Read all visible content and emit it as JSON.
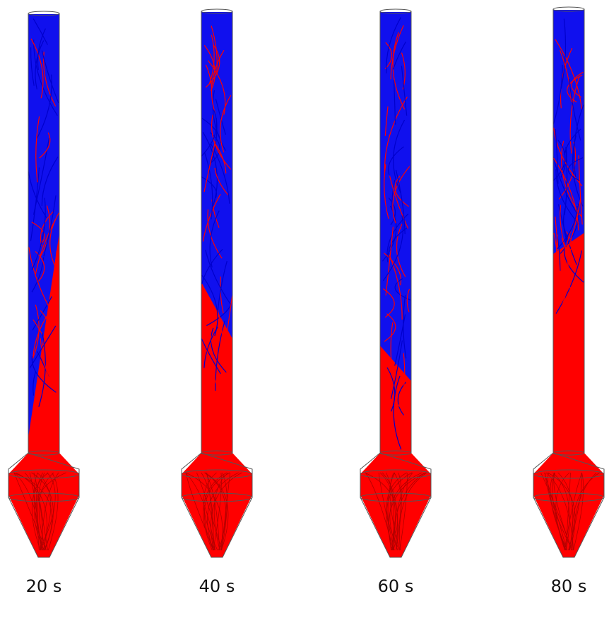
{
  "panels": [
    {
      "label": "20 s"
    },
    {
      "label": "40 s"
    },
    {
      "label": "60 s"
    },
    {
      "label": "80 s"
    }
  ]
}
